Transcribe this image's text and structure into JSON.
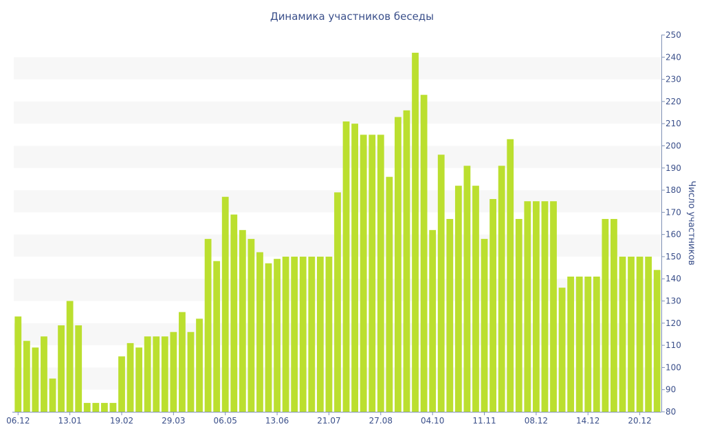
{
  "chart_data": {
    "type": "bar",
    "title": "Динамика участников беседы",
    "xlabel": "",
    "ylabel": "Число участников",
    "ylim": [
      80,
      250
    ],
    "yticks": [
      80,
      90,
      100,
      110,
      120,
      130,
      140,
      150,
      160,
      170,
      180,
      190,
      200,
      210,
      220,
      230,
      240,
      250
    ],
    "xtick_labels": [
      "06.12",
      "13.01",
      "19.02",
      "29.03",
      "06.05",
      "13.06",
      "21.07",
      "27.08",
      "04.10",
      "11.11",
      "08.12",
      "14.12",
      "20.12"
    ],
    "xtick_index": [
      0,
      6,
      12,
      18,
      24,
      30,
      36,
      42,
      48,
      54,
      60,
      66,
      72
    ],
    "grid": "alternating horizontal bands",
    "legend": "none",
    "colors": {
      "bar": "#bbdf2f",
      "text": "#3a4f8a",
      "band": "#f7f7f7",
      "axis": "#7d8fb5"
    },
    "values": [
      123,
      112,
      109,
      114,
      95,
      119,
      130,
      119,
      84,
      84,
      84,
      84,
      105,
      111,
      109,
      114,
      114,
      114,
      116,
      125,
      116,
      122,
      158,
      148,
      177,
      169,
      162,
      158,
      152,
      147,
      149,
      150,
      150,
      150,
      150,
      150,
      150,
      179,
      211,
      210,
      205,
      205,
      205,
      186,
      213,
      216,
      242,
      223,
      162,
      196,
      167,
      182,
      191,
      182,
      158,
      176,
      191,
      203,
      167,
      175,
      175,
      175,
      175,
      136,
      141,
      141,
      141,
      141,
      167,
      167,
      150,
      150,
      150,
      150,
      144
    ]
  }
}
